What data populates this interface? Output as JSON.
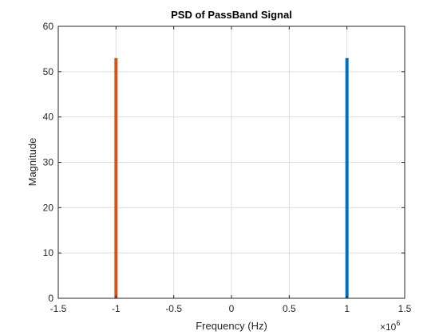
{
  "chart_data": {
    "type": "bar",
    "title": "PSD of PassBand Signal",
    "xlabel": "Frequency (Hz)",
    "ylabel": "Magnitude",
    "x_exponent": {
      "base": "×10",
      "power": "6"
    },
    "xlim": [
      -1.5,
      1.5
    ],
    "ylim": [
      0,
      60
    ],
    "x_ticks": [
      -1.5,
      -1,
      -0.5,
      0,
      0.5,
      1,
      1.5
    ],
    "x_tick_labels": [
      "-1.5",
      "-1",
      "-0.5",
      "0",
      "0.5",
      "1",
      "1.5"
    ],
    "y_ticks": [
      0,
      10,
      20,
      30,
      40,
      50,
      60
    ],
    "y_tick_labels": [
      "0",
      "10",
      "20",
      "30",
      "40",
      "50",
      "60"
    ],
    "grid": true,
    "series": [
      {
        "x": [
          1
        ],
        "values": [
          53
        ],
        "color": "#0072BD"
      },
      {
        "x": [
          -1
        ],
        "values": [
          53
        ],
        "color": "#D95319"
      }
    ]
  }
}
